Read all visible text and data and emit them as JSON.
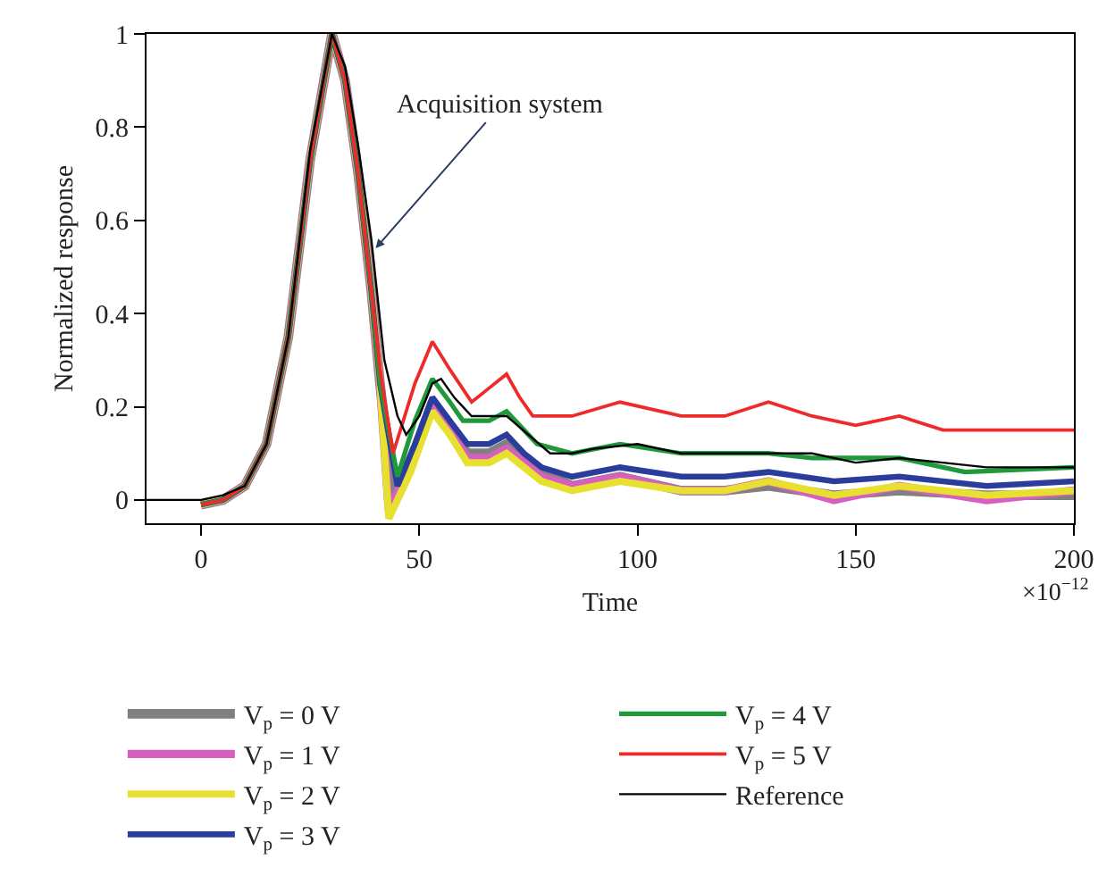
{
  "chart_data": {
    "type": "line",
    "xlabel": "Time",
    "ylabel": "Normalized response",
    "xlim": [
      -12.5,
      200
    ],
    "ylim": [
      -0.05,
      1
    ],
    "xticks": [
      0,
      50,
      100,
      150,
      200
    ],
    "yticks": [
      0,
      0.2,
      0.4,
      0.6,
      0.8,
      1
    ],
    "legend": "bottom",
    "line_style": "solid",
    "annotations": [
      {
        "text": "Acquisition system",
        "x": 40,
        "y": 0.54
      },
      "×10$^{−12}$"
    ],
    "series": [
      {
        "name": "V$_{p}$ = 0 V",
        "color": "#808080",
        "x": [
          0,
          5,
          10,
          15,
          20,
          25,
          30,
          33,
          36,
          39,
          41,
          44,
          48,
          53,
          57,
          61,
          66,
          70,
          74,
          78,
          85,
          96,
          110,
          120,
          130,
          145,
          160,
          180,
          200
        ],
        "values": [
          -0.01,
          0.0,
          0.03,
          0.12,
          0.35,
          0.73,
          1.0,
          0.9,
          0.7,
          0.45,
          0.25,
          0.0,
          0.08,
          0.21,
          0.16,
          0.1,
          0.1,
          0.12,
          0.09,
          0.06,
          0.03,
          0.05,
          0.02,
          0.02,
          0.03,
          0.01,
          0.02,
          0.01,
          0.01
        ]
      },
      {
        "name": "V$_{p}$ = 1 V",
        "color": "#d65fbf",
        "x": [
          0,
          5,
          10,
          15,
          20,
          25,
          30,
          33,
          36,
          39,
          41,
          43,
          48,
          53,
          57,
          61,
          66,
          70,
          74,
          78,
          85,
          96,
          110,
          120,
          130,
          145,
          160,
          180,
          200
        ],
        "values": [
          -0.01,
          0.0,
          0.03,
          0.12,
          0.35,
          0.73,
          1.0,
          0.9,
          0.7,
          0.45,
          0.25,
          -0.02,
          0.07,
          0.2,
          0.15,
          0.09,
          0.09,
          0.11,
          0.08,
          0.05,
          0.03,
          0.05,
          0.02,
          0.02,
          0.04,
          0.0,
          0.03,
          0.0,
          0.02
        ]
      },
      {
        "name": "V$_{p}$ = 2 V",
        "color": "#e8e030",
        "x": [
          0,
          5,
          10,
          15,
          20,
          25,
          30,
          33,
          36,
          39,
          41,
          43,
          48,
          53,
          57,
          61,
          66,
          70,
          74,
          78,
          85,
          96,
          110,
          120,
          130,
          145,
          160,
          180,
          200
        ],
        "values": [
          -0.01,
          0.0,
          0.03,
          0.12,
          0.35,
          0.73,
          1.0,
          0.9,
          0.7,
          0.45,
          0.25,
          -0.04,
          0.06,
          0.19,
          0.14,
          0.08,
          0.08,
          0.1,
          0.07,
          0.04,
          0.02,
          0.04,
          0.02,
          0.02,
          0.04,
          0.01,
          0.03,
          0.01,
          0.02
        ]
      },
      {
        "name": "V$_{p}$ = 3 V",
        "color": "#2a3d9c",
        "x": [
          0,
          5,
          10,
          15,
          20,
          25,
          30,
          33,
          36,
          39,
          41,
          45,
          49,
          53,
          57,
          61,
          66,
          70,
          74,
          78,
          85,
          96,
          110,
          120,
          130,
          145,
          160,
          180,
          200
        ],
        "values": [
          -0.01,
          0.0,
          0.03,
          0.12,
          0.35,
          0.73,
          1.0,
          0.9,
          0.7,
          0.45,
          0.25,
          0.03,
          0.12,
          0.22,
          0.17,
          0.12,
          0.12,
          0.14,
          0.1,
          0.07,
          0.05,
          0.07,
          0.05,
          0.05,
          0.06,
          0.04,
          0.05,
          0.03,
          0.04
        ]
      },
      {
        "name": "V$_{p}$ = 4 V",
        "color": "#1e9a3a",
        "x": [
          0,
          5,
          10,
          15,
          20,
          25,
          30,
          33,
          36,
          39,
          41,
          45,
          49,
          53,
          57,
          60,
          66,
          70,
          74,
          77,
          85,
          96,
          110,
          120,
          130,
          140,
          160,
          175,
          200
        ],
        "values": [
          -0.01,
          0.0,
          0.03,
          0.12,
          0.35,
          0.73,
          1.0,
          0.9,
          0.7,
          0.45,
          0.25,
          0.05,
          0.17,
          0.26,
          0.21,
          0.17,
          0.17,
          0.19,
          0.15,
          0.12,
          0.1,
          0.12,
          0.1,
          0.1,
          0.1,
          0.09,
          0.09,
          0.06,
          0.07
        ]
      },
      {
        "name": "V$_{p}$ = 5 V",
        "color": "#ee2a2a",
        "x": [
          0,
          5,
          10,
          15,
          20,
          25,
          30,
          33,
          36,
          39,
          41,
          44,
          49,
          53,
          57,
          62,
          66,
          70,
          73,
          76,
          85,
          96,
          110,
          120,
          130,
          140,
          150,
          160,
          170,
          180,
          200
        ],
        "values": [
          -0.01,
          0.0,
          0.03,
          0.12,
          0.35,
          0.73,
          1.0,
          0.9,
          0.7,
          0.45,
          0.28,
          0.1,
          0.25,
          0.34,
          0.28,
          0.21,
          0.24,
          0.27,
          0.22,
          0.18,
          0.18,
          0.21,
          0.18,
          0.18,
          0.21,
          0.18,
          0.16,
          0.18,
          0.15,
          0.15,
          0.15
        ]
      },
      {
        "name": "Reference",
        "color": "#000000",
        "x": [
          -12.5,
          0,
          5,
          10,
          15,
          20,
          25,
          30,
          33,
          36,
          39,
          42,
          45,
          47,
          50,
          53,
          55,
          58,
          62,
          66,
          70,
          75,
          80,
          85,
          90,
          100,
          110,
          120,
          130,
          140,
          150,
          160,
          170,
          180,
          200
        ],
        "values": [
          0,
          0,
          0.01,
          0.03,
          0.12,
          0.35,
          0.75,
          1.0,
          0.93,
          0.76,
          0.56,
          0.3,
          0.18,
          0.14,
          0.18,
          0.25,
          0.26,
          0.22,
          0.18,
          0.18,
          0.18,
          0.14,
          0.1,
          0.1,
          0.11,
          0.12,
          0.1,
          0.1,
          0.1,
          0.1,
          0.08,
          0.09,
          0.08,
          0.07,
          0.07
        ]
      }
    ]
  }
}
